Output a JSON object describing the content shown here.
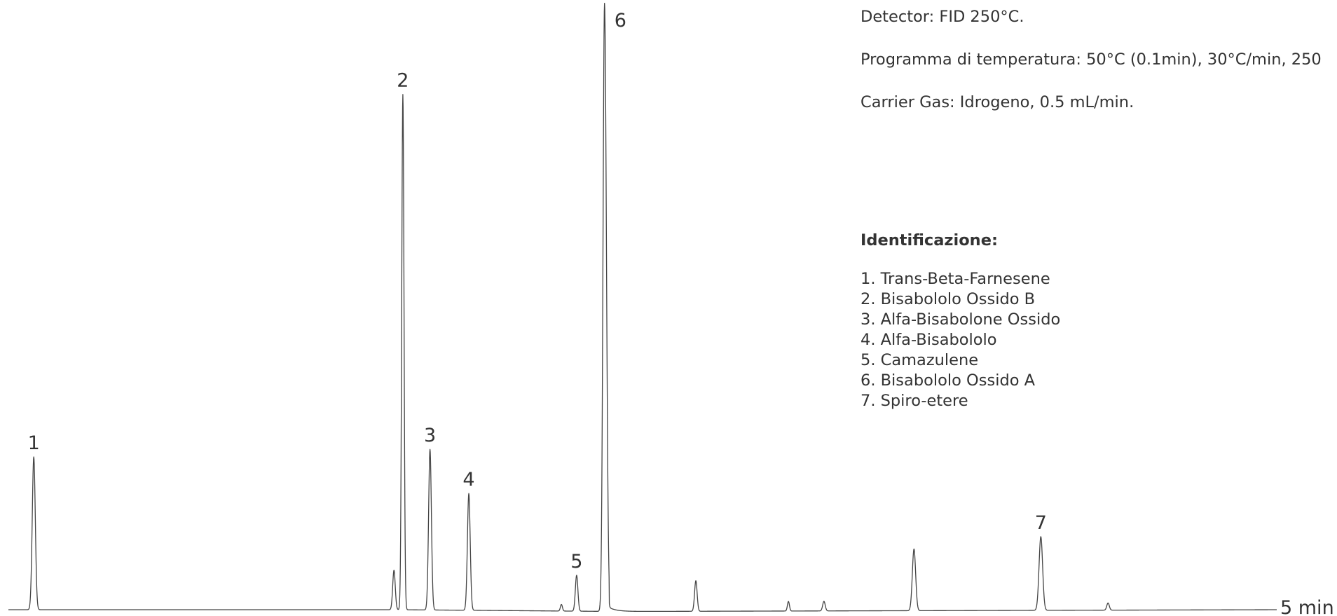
{
  "chart_data": {
    "type": "line",
    "x_unit_label": "5 min",
    "xlim": [
      0,
      5
    ],
    "ylim": [
      0,
      100
    ],
    "baseline_points": [
      [
        0,
        0
      ],
      [
        1.54,
        0
      ],
      [
        2.4,
        -0.3
      ],
      [
        5,
        0
      ]
    ],
    "peaks": [
      {
        "x": 0.1,
        "height": 25.5,
        "width": 0.006,
        "label": "1"
      },
      {
        "x": 1.52,
        "height": 6.6,
        "width": 0.005,
        "label": ""
      },
      {
        "x": 1.555,
        "height": 86,
        "width": 0.0045,
        "label": "2"
      },
      {
        "x": 1.662,
        "height": 26.8,
        "width": 0.0055,
        "label": "3"
      },
      {
        "x": 1.815,
        "height": 19.5,
        "width": 0.0055,
        "label": "4"
      },
      {
        "x": 2.18,
        "height": 1.1,
        "width": 0.004,
        "label": ""
      },
      {
        "x": 2.24,
        "height": 6.0,
        "width": 0.005,
        "label": "5"
      },
      {
        "x": 2.35,
        "height": 101.5,
        "width": 0.006,
        "label": "6",
        "tail": 0.03
      },
      {
        "x": 2.71,
        "height": 5.1,
        "width": 0.005,
        "label": ""
      },
      {
        "x": 3.075,
        "height": 1.6,
        "width": 0.004,
        "label": ""
      },
      {
        "x": 3.215,
        "height": 1.6,
        "width": 0.005,
        "label": ""
      },
      {
        "x": 3.57,
        "height": 10.3,
        "width": 0.0065,
        "label": ""
      },
      {
        "x": 4.07,
        "height": 12.3,
        "width": 0.007,
        "label": "7"
      },
      {
        "x": 4.335,
        "height": 1.2,
        "width": 0.005,
        "label": ""
      }
    ]
  },
  "conditions": [
    "Detector: FID 250°C.",
    "Programma di temperatura: 50°C (0.1min), 30°C/min, 250",
    "Carrier Gas: Idrogeno, 0.5 mL/min."
  ],
  "identification": {
    "title": "Identificazione:",
    "items": [
      "1. Trans-Beta-Farnesene",
      "2. Bisabololo Ossido B",
      "3. Alfa-Bisabolone Ossido",
      "4. Alfa-Bisabololo",
      "5. Camazulene",
      "6. Bisabololo Ossido A",
      "7. Spiro-etere"
    ]
  },
  "colors": {
    "trace": "#444444",
    "text": "#333333",
    "background": "#ffffff"
  }
}
